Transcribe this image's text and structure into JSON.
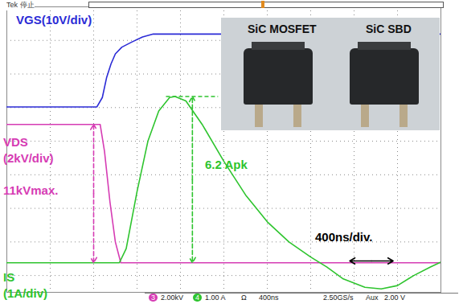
{
  "chart_data": {
    "type": "line",
    "title": "Tek 停止",
    "xlim": [
      0,
      4000
    ],
    "ylim": [
      -4.5,
      4
    ],
    "xticks": [
      0,
      400,
      800,
      1200,
      1600,
      2000,
      2400,
      2800,
      3200,
      3600,
      4000
    ],
    "yticks": [
      -4,
      -3,
      -2,
      -1,
      0,
      1,
      2,
      3,
      4
    ],
    "grid": true,
    "tick_labels": false,
    "legend": "none",
    "series": [
      {
        "name": "VGS(10V/div)",
        "color": "#2b2bd6",
        "x": [
          0,
          830,
          880,
          920,
          960,
          1000,
          1060,
          1150,
          1250,
          1350,
          4000
        ],
        "values": [
          1.02,
          1.02,
          1.3,
          1.9,
          2.3,
          2.6,
          2.8,
          2.95,
          3.1,
          3.19,
          3.19
        ]
      },
      {
        "name": "VDS (2kV/div)",
        "color": "#d63cb4",
        "x": [
          0,
          860,
          900,
          950,
          1000,
          1050,
          4000
        ],
        "values": [
          0.5,
          0.5,
          -0.3,
          -1.8,
          -3.0,
          -3.62,
          -3.62
        ]
      },
      {
        "name": "IS (1A/div)",
        "color": "#2ec42e",
        "x": [
          0,
          1037,
          1100,
          1200,
          1300,
          1400,
          1500,
          1550,
          1650,
          1800,
          2000,
          2200,
          2400,
          2600,
          2800,
          2950,
          3100,
          3300,
          3450,
          3600,
          3750,
          3900,
          4000
        ],
        "values": [
          -3.62,
          -3.62,
          -3.2,
          -1.5,
          0,
          0.9,
          1.3,
          1.33,
          1.2,
          0.5,
          -0.6,
          -1.6,
          -2.4,
          -3.0,
          -3.45,
          -3.75,
          -4.1,
          -4.35,
          -4.4,
          -4.3,
          -4.0,
          -3.75,
          -3.6
        ]
      }
    ],
    "annotations": [
      {
        "text": "11kVmax.",
        "series": "VDS (2kV/div)"
      },
      {
        "text": "6.2 Apk",
        "series": "IS (1A/div)"
      },
      {
        "text": "400ns/div."
      }
    ],
    "inset_labels": [
      "SiC MOSFET",
      "SiC SBD"
    ],
    "status_bar": [
      "3",
      "2.00kV",
      "4",
      "1.00 A",
      "Ω",
      "400ns",
      "2.50GS/s",
      "Aux",
      "2.00 V"
    ]
  }
}
